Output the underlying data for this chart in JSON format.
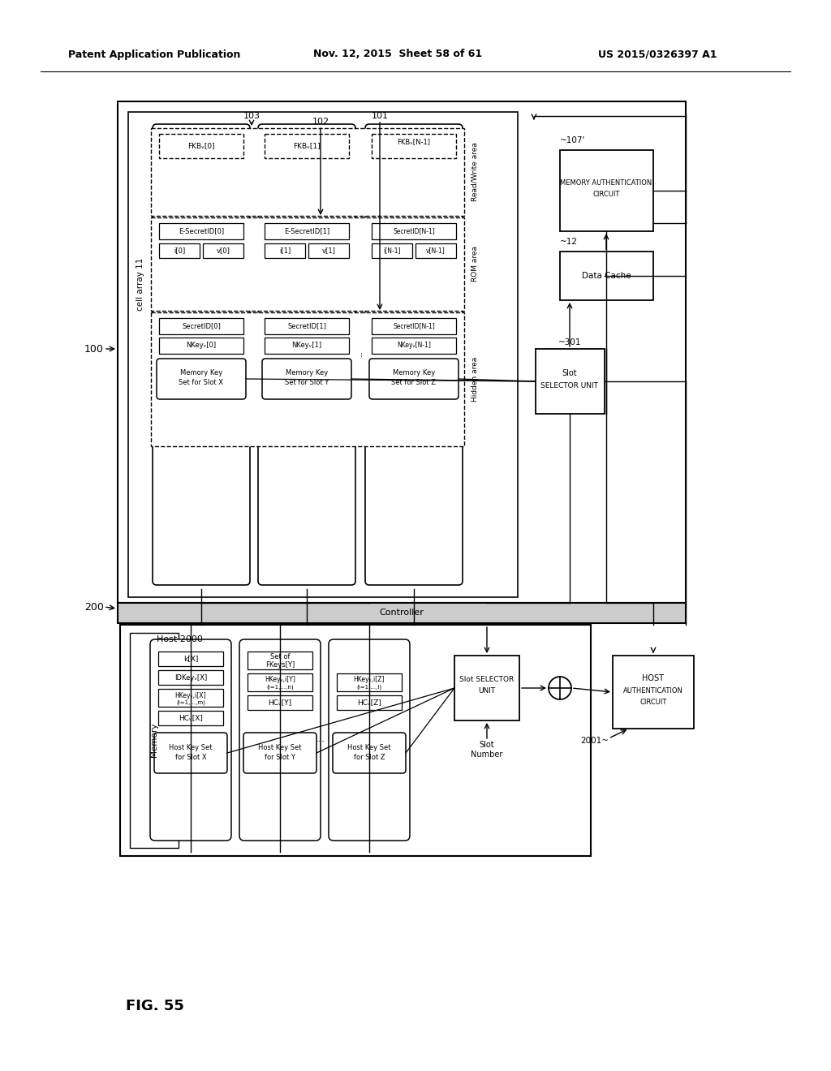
{
  "header_left": "Patent Application Publication",
  "header_mid": "Nov. 12, 2015  Sheet 58 of 61",
  "header_right": "US 2015/0326397 A1",
  "fig_label": "FIG. 55",
  "bg_color": "#ffffff",
  "line_color": "#1a1a1a"
}
